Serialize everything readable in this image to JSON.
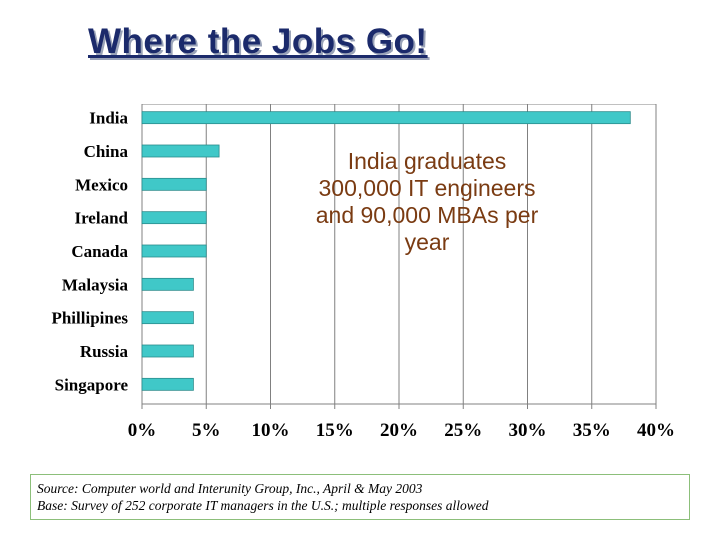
{
  "title": "Where the Jobs Go!",
  "annotation": {
    "lines": [
      "India graduates",
      "300,000 IT engineers",
      "and 90,000 MBAs per",
      "year"
    ]
  },
  "source": {
    "line1": "Source: Computer world and Interunity Group, Inc., April & May 2003",
    "line2": "Base: Survey of 252 corporate IT managers in the U.S.; multiple responses allowed"
  },
  "colors": {
    "bar": "#40c8c8",
    "bar_edge": "#2a8c8c",
    "grid": "#808080",
    "title": "#1b2a6b",
    "annotation": "#7a3b12"
  },
  "chart_data": {
    "type": "bar",
    "orientation": "horizontal",
    "categories": [
      "India",
      "China",
      "Mexico",
      "Ireland",
      "Canada",
      "Malaysia",
      "Phillipines",
      "Russia",
      "Singapore"
    ],
    "values": [
      38,
      6,
      5,
      5,
      5,
      4,
      4,
      4,
      4
    ],
    "value_unit": "%",
    "xlim": [
      0,
      40
    ],
    "xticks": [
      0,
      5,
      10,
      15,
      20,
      25,
      30,
      35,
      40
    ],
    "xtick_labels": [
      "0%",
      "5%",
      "10%",
      "15%",
      "20%",
      "25%",
      "30%",
      "35%",
      "40%"
    ],
    "grid": true,
    "legend": "none"
  }
}
